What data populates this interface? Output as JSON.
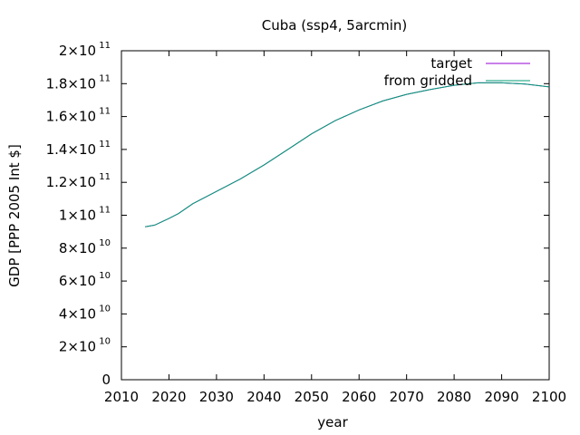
{
  "chart_data": {
    "type": "line",
    "title": "Cuba (ssp4, 5arcmin)",
    "xlabel": "year",
    "ylabel": "GDP [PPP 2005 Int $]",
    "xlim": [
      2010,
      2100
    ],
    "ylim": [
      0,
      200000000000
    ],
    "grid": false,
    "legend_position": "top-right",
    "x_ticks": [
      2010,
      2020,
      2030,
      2040,
      2050,
      2060,
      2070,
      2080,
      2090,
      2100
    ],
    "y_ticks": [
      {
        "value": 0,
        "mantissa": "0",
        "exp": ""
      },
      {
        "value": 20000000000,
        "mantissa": "2×10",
        "exp": "10"
      },
      {
        "value": 40000000000,
        "mantissa": "4×10",
        "exp": "10"
      },
      {
        "value": 60000000000,
        "mantissa": "6×10",
        "exp": "10"
      },
      {
        "value": 80000000000,
        "mantissa": "8×10",
        "exp": "10"
      },
      {
        "value": 100000000000,
        "mantissa": "1×10",
        "exp": "11"
      },
      {
        "value": 120000000000,
        "mantissa": "1.2×10",
        "exp": "11"
      },
      {
        "value": 140000000000,
        "mantissa": "1.4×10",
        "exp": "11"
      },
      {
        "value": 160000000000,
        "mantissa": "1.6×10",
        "exp": "11"
      },
      {
        "value": 180000000000,
        "mantissa": "1.8×10",
        "exp": "11"
      },
      {
        "value": 200000000000,
        "mantissa": "2×10",
        "exp": "11"
      }
    ],
    "x": [
      2015,
      2017,
      2020,
      2022,
      2025,
      2030,
      2035,
      2040,
      2045,
      2050,
      2055,
      2060,
      2065,
      2070,
      2075,
      2080,
      2085,
      2090,
      2095,
      2100
    ],
    "series": [
      {
        "name": "target",
        "color": "#9400d3",
        "values": [
          93000000000,
          94000000000,
          98000000000,
          101000000000,
          107000000000,
          114500000000,
          122000000000,
          130500000000,
          140000000000,
          149500000000,
          157500000000,
          164000000000,
          169500000000,
          173500000000,
          176500000000,
          179000000000,
          180500000000,
          180500000000,
          179800000000,
          178000000000
        ]
      },
      {
        "name": "from gridded",
        "color": "#009e73",
        "values": [
          93000000000,
          94000000000,
          98000000000,
          101000000000,
          107000000000,
          114500000000,
          122000000000,
          130500000000,
          140000000000,
          149500000000,
          157500000000,
          164000000000,
          169500000000,
          173500000000,
          176500000000,
          179000000000,
          180500000000,
          180500000000,
          179800000000,
          178000000000
        ]
      }
    ]
  }
}
